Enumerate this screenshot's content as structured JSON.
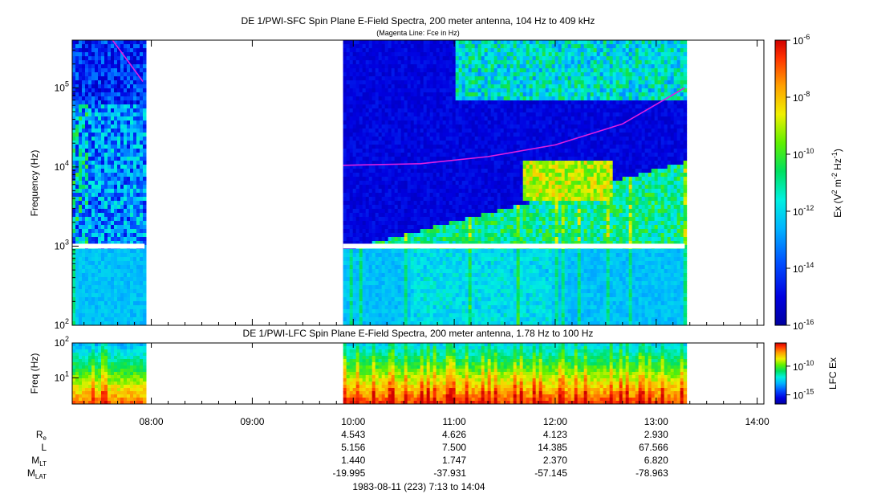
{
  "chart_data": [
    {
      "type": "heatmap",
      "title": "DE 1/PWI-SFC  Spin Plane E-Field Spectra, 200 meter antenna, 104 Hz to 409 kHz",
      "subtitle": "(Magenta Line: Fce in Hz)",
      "ylabel": "Frequency (Hz)",
      "y_scale": "log",
      "ylim": [
        100,
        400000
      ],
      "y_ticks": [
        {
          "value": 100,
          "base": "10",
          "exp": "2"
        },
        {
          "value": 1000,
          "base": "10",
          "exp": "3"
        },
        {
          "value": 10000,
          "base": "10",
          "exp": "4"
        },
        {
          "value": 100000,
          "base": "10",
          "exp": "5"
        }
      ],
      "xlim": [
        "07:13",
        "14:04"
      ],
      "data_gaps": [
        [
          "07:56",
          "09:54"
        ]
      ],
      "fce_line_color": "#e020e0",
      "fce_line_points": [
        {
          "t": "07:37",
          "f": 400000
        },
        {
          "t": "07:55",
          "f": 120000
        },
        {
          "t": "09:54",
          "f": 10500
        },
        {
          "t": "10:40",
          "f": 11000
        },
        {
          "t": "11:20",
          "f": 13500
        },
        {
          "t": "12:00",
          "f": 19000
        },
        {
          "t": "12:40",
          "f": 35000
        },
        {
          "t": "13:17",
          "f": 100000
        }
      ],
      "colorbar": {
        "label_prefix": "Ex (V",
        "label_mid1": " m",
        "label_mid2": " Hz",
        "label_suffix": ")",
        "sup1": "2",
        "sup2": "-2",
        "sup3": "-1",
        "scale": "log",
        "range": [
          1e-16,
          1e-06
        ],
        "ticks": [
          {
            "base": "10",
            "exp": "-6"
          },
          {
            "base": "10",
            "exp": "-8"
          },
          {
            "base": "10",
            "exp": "-10"
          },
          {
            "base": "10",
            "exp": "-12"
          },
          {
            "base": "10",
            "exp": "-14"
          },
          {
            "base": "10",
            "exp": "-16"
          }
        ]
      }
    },
    {
      "type": "heatmap",
      "title": "DE 1/PWI-LFC  Spin Plane E-Field Spectra, 200 meter antenna, 1.78 Hz to 100 Hz",
      "ylabel": "Freq (Hz)",
      "y_scale": "log",
      "ylim": [
        1.78,
        100
      ],
      "y_ticks": [
        {
          "value": 10,
          "base": "10",
          "exp": "1"
        },
        {
          "value": 100,
          "base": "10",
          "exp": "2"
        }
      ],
      "xlim": [
        "07:13",
        "14:04"
      ],
      "data_gaps": [
        [
          "07:56",
          "09:54"
        ]
      ],
      "colorbar": {
        "label": "LFC Ex",
        "scale": "log",
        "ticks": [
          {
            "base": "10",
            "exp": "-10"
          },
          {
            "base": "10",
            "exp": "-15"
          }
        ]
      }
    }
  ],
  "x_ticks": [
    "08:00",
    "09:00",
    "10:00",
    "11:00",
    "12:00",
    "13:00",
    "14:00"
  ],
  "ephemeris": {
    "labels": [
      {
        "base": "R",
        "sub": "e"
      },
      {
        "base": "L",
        "sub": ""
      },
      {
        "base": "M",
        "sub": "LT"
      },
      {
        "base": "M",
        "sub": "LAT"
      }
    ],
    "times": [
      "10:00",
      "11:00",
      "12:00",
      "13:00"
    ],
    "rows": [
      [
        "4.543",
        "4.626",
        "4.123",
        "2.930"
      ],
      [
        "5.156",
        "7.500",
        "14.385",
        "67.566"
      ],
      [
        "1.440",
        "1.747",
        "2.370",
        "6.820"
      ],
      [
        "-19.995",
        "-37.931",
        "-57.145",
        "-78.963"
      ]
    ]
  },
  "footer": "1983-08-11 (223) 7:13 to 14:04"
}
